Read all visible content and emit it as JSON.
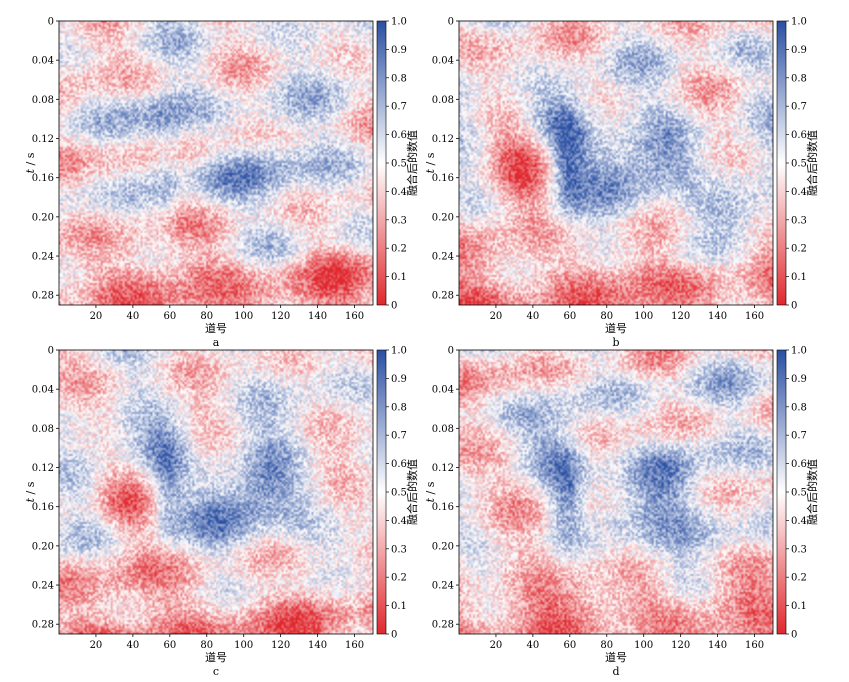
{
  "figure": {
    "panels": [
      {
        "letter": "a",
        "xlabel": "道号",
        "ylabel_var": "t",
        "ylabel_unit": " / s",
        "colorbar_label": "融合后的数值",
        "pattern_seed": 11,
        "blob_strength": 0.55
      },
      {
        "letter": "b",
        "xlabel": "道号",
        "ylabel_var": "t",
        "ylabel_unit": " / s",
        "colorbar_label": "融合后的数值",
        "pattern_seed": 23,
        "blob_strength": 1.0
      },
      {
        "letter": "c",
        "xlabel": "道号",
        "ylabel_var": "t",
        "ylabel_unit": " / s",
        "colorbar_label": "融合后的数值",
        "pattern_seed": 37,
        "blob_strength": 0.9
      },
      {
        "letter": "d",
        "xlabel": "道号",
        "ylabel_var": "t",
        "ylabel_unit": " / s",
        "colorbar_label": "融合后的数值",
        "pattern_seed": 53,
        "blob_strength": 0.85
      }
    ]
  },
  "chart_data": [
    {
      "type": "heatmap",
      "panel": "a",
      "xlabel": "道号",
      "ylabel": "t / s",
      "x_ticks": [
        20,
        40,
        60,
        80,
        100,
        120,
        140,
        160
      ],
      "x_range": [
        0,
        170
      ],
      "y_ticks": [
        "0",
        "0.04",
        "0.08",
        "0.12",
        "0.16",
        "0.20",
        "0.24",
        "0.28"
      ],
      "y_range": [
        0,
        0.29
      ],
      "colorbar_ticks": [
        "0",
        "0.1",
        "0.2",
        "0.3",
        "0.4",
        "0.5",
        "0.6",
        "0.7",
        "0.8",
        "0.9",
        "1.0"
      ],
      "colorbar_range": [
        0,
        1
      ],
      "colormap": [
        "#e0282e",
        "#ffffff",
        "#2a4fa3"
      ],
      "colorbar_label": "融合后的数值"
    },
    {
      "type": "heatmap",
      "panel": "b",
      "xlabel": "道号",
      "ylabel": "t / s",
      "x_ticks": [
        20,
        40,
        60,
        80,
        100,
        120,
        140,
        160
      ],
      "x_range": [
        0,
        170
      ],
      "y_ticks": [
        "0",
        "0.04",
        "0.08",
        "0.12",
        "0.16",
        "0.20",
        "0.24",
        "0.28"
      ],
      "y_range": [
        0,
        0.29
      ],
      "colorbar_ticks": [
        "0",
        "0.1",
        "0.2",
        "0.3",
        "0.4",
        "0.5",
        "0.6",
        "0.7",
        "0.8",
        "0.9",
        "1.0"
      ],
      "colorbar_range": [
        0,
        1
      ],
      "colormap": [
        "#e0282e",
        "#ffffff",
        "#2a4fa3"
      ],
      "colorbar_label": "融合后的数值"
    },
    {
      "type": "heatmap",
      "panel": "c",
      "xlabel": "道号",
      "ylabel": "t / s",
      "x_ticks": [
        20,
        40,
        60,
        80,
        100,
        120,
        140,
        160
      ],
      "x_range": [
        0,
        170
      ],
      "y_ticks": [
        "0",
        "0.04",
        "0.08",
        "0.12",
        "0.16",
        "0.20",
        "0.24",
        "0.28"
      ],
      "y_range": [
        0,
        0.29
      ],
      "colorbar_ticks": [
        "0",
        "0.1",
        "0.2",
        "0.3",
        "0.4",
        "0.5",
        "0.6",
        "0.7",
        "0.8",
        "0.9",
        "1.0"
      ],
      "colorbar_range": [
        0,
        1
      ],
      "colormap": [
        "#e0282e",
        "#ffffff",
        "#2a4fa3"
      ],
      "colorbar_label": "融合后的数值"
    },
    {
      "type": "heatmap",
      "panel": "d",
      "xlabel": "道号",
      "ylabel": "t / s",
      "x_ticks": [
        20,
        40,
        60,
        80,
        100,
        120,
        140,
        160
      ],
      "x_range": [
        0,
        170
      ],
      "y_ticks": [
        "0",
        "0.04",
        "0.08",
        "0.12",
        "0.16",
        "0.20",
        "0.24",
        "0.28"
      ],
      "y_range": [
        0,
        0.29
      ],
      "colorbar_ticks": [
        "0",
        "0.1",
        "0.2",
        "0.3",
        "0.4",
        "0.5",
        "0.6",
        "0.7",
        "0.8",
        "0.9",
        "1.0"
      ],
      "colorbar_range": [
        0,
        1
      ],
      "colormap": [
        "#e0282e",
        "#ffffff",
        "#2a4fa3"
      ],
      "colorbar_label": "融合后的数值"
    }
  ]
}
